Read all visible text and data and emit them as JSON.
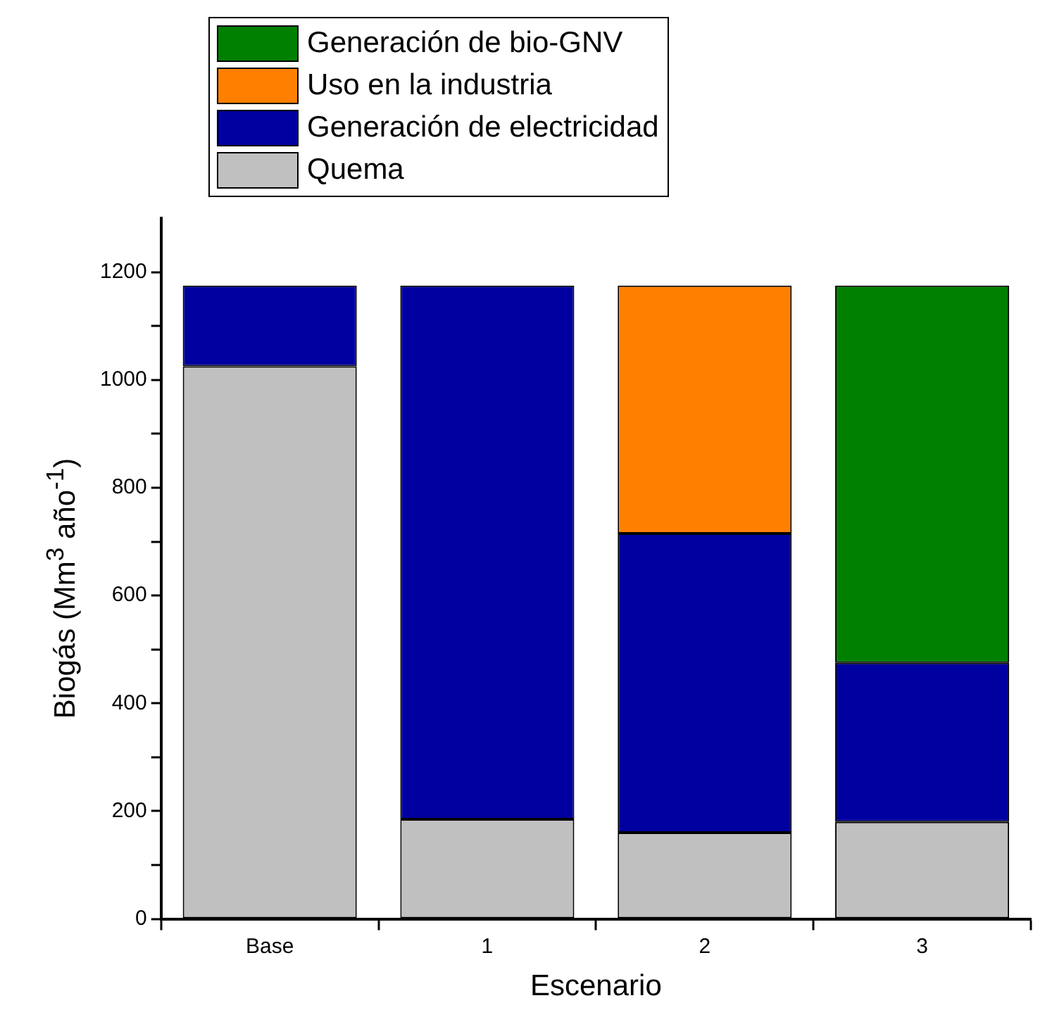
{
  "chart_data": {
    "type": "bar",
    "stacked": true,
    "xlabel": "Escenario",
    "ylabel": "Biogás (Mm$^{3}$ año$^{-1}$)",
    "categories": [
      "Base",
      "1",
      "2",
      "3"
    ],
    "series": [
      {
        "name": "Quema",
        "color": "#c0c0c0",
        "values": [
          1025,
          185,
          160,
          180
        ]
      },
      {
        "name": "Generación de electricidad",
        "color": "#0000a0",
        "values": [
          150,
          990,
          555,
          295
        ]
      },
      {
        "name": "Uso en la industria",
        "color": "#ff8000",
        "values": [
          null,
          null,
          460,
          null
        ]
      },
      {
        "name": "Generación de bio-GNV",
        "color": "#008000",
        "values": [
          null,
          null,
          null,
          700
        ]
      }
    ],
    "ylim": [
      0,
      1300
    ],
    "yticks": [
      0,
      {
        "value": 100,
        "label": null
      },
      200,
      {
        "value": 300,
        "label": null
      },
      400,
      {
        "value": 500,
        "label": null
      },
      600,
      {
        "value": 700,
        "label": null
      },
      800,
      {
        "value": 900,
        "label": null
      },
      1000,
      {
        "value": 1100,
        "label": null
      },
      1200
    ],
    "grid": false,
    "legend": "top left"
  }
}
